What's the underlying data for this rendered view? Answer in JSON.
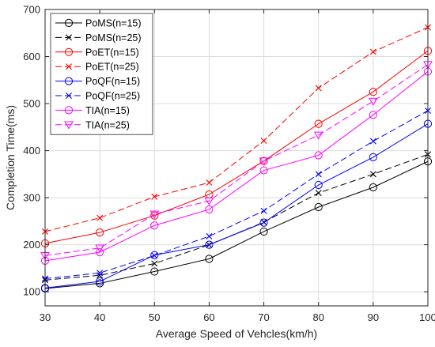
{
  "chart_data": {
    "type": "line",
    "title": "",
    "xlabel": "Average Speed of Vehcles(km/h)",
    "ylabel": "Completion Time(ms)",
    "x": [
      30,
      40,
      50,
      60,
      70,
      80,
      90,
      100
    ],
    "xlim": [
      30,
      100
    ],
    "ylim": [
      70,
      700
    ],
    "xticks": [
      "30",
      "40",
      "50",
      "60",
      "70",
      "80",
      "90",
      "100"
    ],
    "yticks": [
      "100",
      "200",
      "300",
      "400",
      "500",
      "600",
      "700"
    ],
    "grid": true,
    "legend_position": "top-left",
    "series": [
      {
        "name": "PoMS(n=15)",
        "color": "#000000",
        "dash": "solid",
        "marker": "circle",
        "values": [
          107,
          118,
          143,
          170,
          228,
          280,
          322,
          377
        ]
      },
      {
        "name": "PoMS(n=25)",
        "color": "#000000",
        "dash": "dashed",
        "marker": "x",
        "values": [
          125,
          135,
          160,
          200,
          248,
          310,
          350,
          392
        ]
      },
      {
        "name": "PoET(n=15)",
        "color": "#ff0000",
        "dash": "solid",
        "marker": "circle",
        "values": [
          203,
          226,
          262,
          307,
          378,
          457,
          525,
          612
        ]
      },
      {
        "name": "PoET(n=25)",
        "color": "#ff0000",
        "dash": "dashed",
        "marker": "x",
        "values": [
          228,
          257,
          302,
          332,
          421,
          533,
          610,
          662
        ]
      },
      {
        "name": "PoQF(n=15)",
        "color": "#0000ff",
        "dash": "solid",
        "marker": "circle",
        "values": [
          108,
          122,
          178,
          200,
          247,
          327,
          386,
          457
        ]
      },
      {
        "name": "PoQF(n=25)",
        "color": "#0000ff",
        "dash": "dashed",
        "marker": "x",
        "values": [
          128,
          140,
          177,
          218,
          272,
          350,
          420,
          485
        ]
      },
      {
        "name": "TIA(n=15)",
        "color": "#ff00ff",
        "dash": "solid",
        "marker": "circle",
        "values": [
          166,
          184,
          241,
          275,
          358,
          390,
          476,
          568
        ]
      },
      {
        "name": "TIA(n=25)",
        "color": "#ff00ff",
        "dash": "dashed",
        "marker": "triangle-down",
        "values": [
          177,
          193,
          265,
          293,
          378,
          433,
          505,
          583
        ]
      }
    ]
  }
}
